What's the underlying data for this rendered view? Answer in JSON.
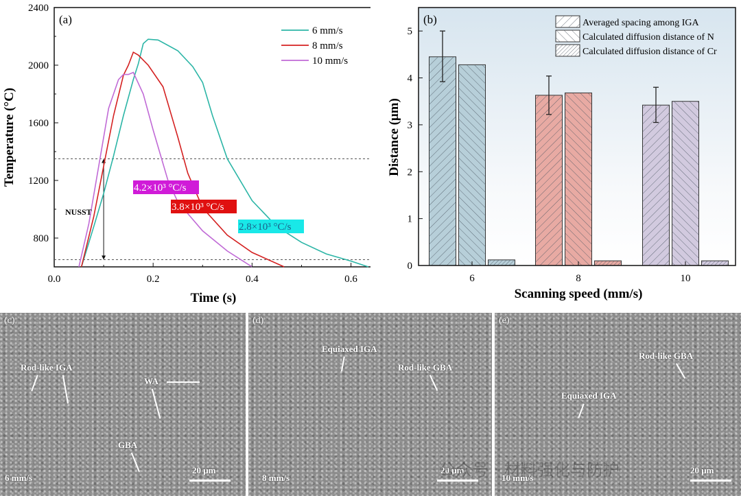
{
  "chart_data": [
    {
      "panel_label": "(a)",
      "type": "line",
      "xlabel": "Time (s)",
      "ylabel": "Temperature (°C)",
      "xlim": [
        0,
        0.645
      ],
      "ylim": [
        600,
        2400
      ],
      "xticks": [
        "0.0",
        "0.2",
        "0.4",
        "0.6"
      ],
      "yticks": [
        "800",
        "1200",
        "1600",
        "2000",
        "2400"
      ],
      "legend_position": "top-right",
      "reference_lines_y": [
        1350,
        650
      ],
      "annotation_nusst": "NUSST",
      "series": [
        {
          "name": "6 mm/s",
          "color": "#2bb5a6",
          "x": [
            0.055,
            0.08,
            0.1,
            0.12,
            0.14,
            0.16,
            0.17,
            0.18,
            0.19,
            0.21,
            0.25,
            0.28,
            0.3,
            0.32,
            0.35,
            0.4,
            0.45,
            0.5,
            0.55,
            0.6,
            0.635
          ],
          "y": [
            600,
            880,
            1110,
            1370,
            1650,
            1900,
            2010,
            2150,
            2180,
            2175,
            2100,
            1990,
            1880,
            1650,
            1350,
            1060,
            880,
            770,
            690,
            640,
            600
          ]
        },
        {
          "name": "8 mm/s",
          "color": "#d42020",
          "x": [
            0.055,
            0.08,
            0.1,
            0.12,
            0.14,
            0.15,
            0.16,
            0.17,
            0.19,
            0.22,
            0.25,
            0.27,
            0.3,
            0.35,
            0.4,
            0.465
          ],
          "y": [
            600,
            950,
            1300,
            1650,
            1930,
            2000,
            2090,
            2070,
            2000,
            1850,
            1500,
            1250,
            1010,
            820,
            700,
            600
          ]
        },
        {
          "name": "10 mm/s",
          "color": "#c06ad6",
          "x": [
            0.05,
            0.07,
            0.09,
            0.11,
            0.13,
            0.14,
            0.15,
            0.16,
            0.18,
            0.2,
            0.23,
            0.25,
            0.3,
            0.35,
            0.4
          ],
          "y": [
            600,
            900,
            1300,
            1700,
            1900,
            1935,
            1935,
            1950,
            1800,
            1550,
            1200,
            1050,
            850,
            710,
            600
          ]
        }
      ],
      "rate_labels": [
        {
          "text": "4.2×10³ °C/s",
          "color": "#d01bd8",
          "text_color": "#ffffff"
        },
        {
          "text": "3.8×10³ °C/s",
          "color": "#e01010",
          "text_color": "#ffffff"
        },
        {
          "text": "2.8×10³ °C/s",
          "color": "#19e8e8",
          "text_color": "#1b5f8a"
        }
      ]
    },
    {
      "panel_label": "(b)",
      "type": "bar",
      "xlabel": "Scanning speed (mm/s)",
      "ylabel": "Distance (μm)",
      "categories": [
        "6",
        "8",
        "10"
      ],
      "ylim": [
        0,
        5.5
      ],
      "yticks": [
        "0",
        "1",
        "2",
        "3",
        "4",
        "5"
      ],
      "legend_position": "top-right",
      "category_colors": [
        "#b7cfd9",
        "#e8aaa3",
        "#d2cadf"
      ],
      "series": [
        {
          "name": "Averaged spacing among IGA",
          "hatch": "forward",
          "values": [
            4.45,
            3.63,
            3.42
          ],
          "error_low": [
            3.92,
            3.22,
            3.05
          ],
          "error_high": [
            5.0,
            4.04,
            3.8
          ]
        },
        {
          "name": "Calculated diffusion distance of N",
          "hatch": "backward",
          "values": [
            4.28,
            3.68,
            3.5
          ]
        },
        {
          "name": "Calculated diffusion distance of Cr",
          "hatch": "dense",
          "values": [
            0.12,
            0.1,
            0.1
          ]
        }
      ]
    }
  ],
  "sem_panels": [
    {
      "label": "(c)",
      "speed": "6 mm/s",
      "scale": "20 μm",
      "annotations": [
        "Rod-like IGA",
        "WA",
        "GBA"
      ]
    },
    {
      "label": "(d)",
      "speed": "8 mm/s",
      "scale": "20 μm",
      "annotations": [
        "Equiaxed IGA",
        "Rod-like GBA"
      ]
    },
    {
      "label": "(e)",
      "speed": "10 mm/s",
      "scale": "20 μm",
      "annotations": [
        "Rod-like GBA",
        "Equiaxed IGA"
      ]
    }
  ],
  "watermark": "公众号 · 材料强化与防护"
}
